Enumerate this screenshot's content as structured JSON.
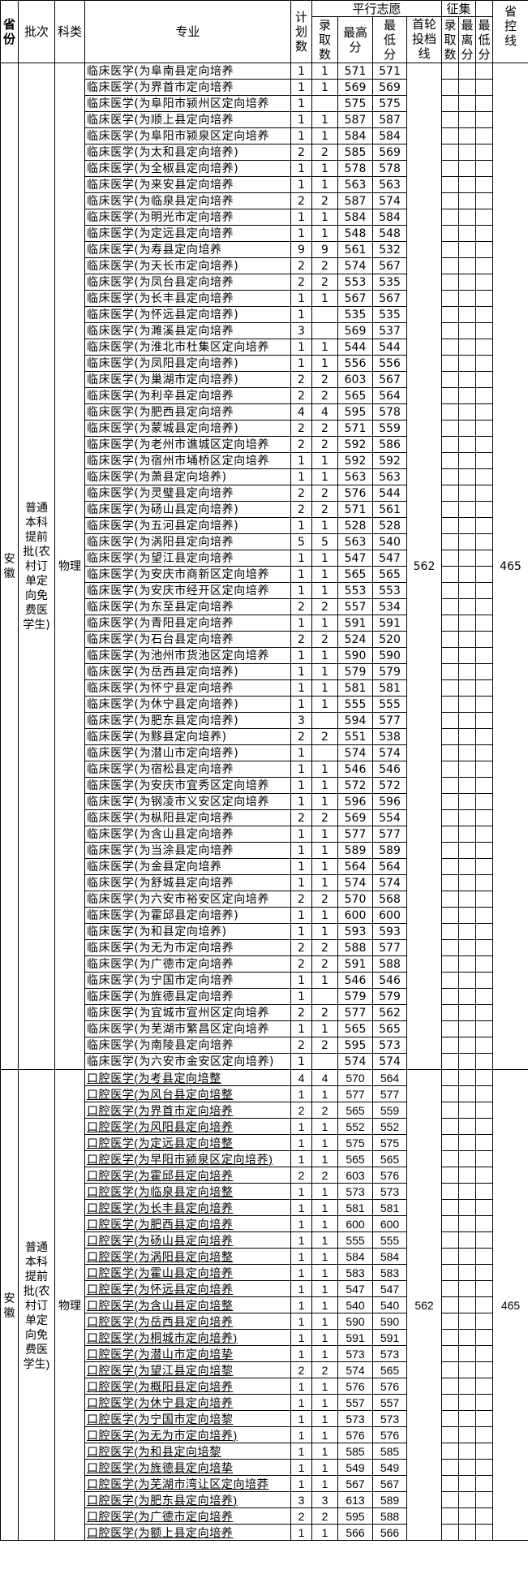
{
  "header": {
    "province": "省份",
    "batch": "批次",
    "subject_type": "科类",
    "major": "专业",
    "plan": "计划数",
    "parallel_group": "平行志愿",
    "admitted": "录取数",
    "max_score": "最高分",
    "min_score": "最低分",
    "first_round_line": "首轮投档线",
    "solicit_group": "征集",
    "solicit_admitted": "录取数",
    "solicit_max": "最离分",
    "solicit_min": "最低分",
    "province_control_line": "省控线"
  },
  "blocks": [
    {
      "province": "安徽",
      "batch": "普通本科提前批(农村订单定向免费医学生)",
      "subject_type": "物理",
      "first_round_line": "562",
      "province_control_line": "465",
      "rows": [
        [
          "临床医学(为阜南县定向培养",
          "1",
          "1",
          "571",
          "571"
        ],
        [
          "临床医学(为界首市定向培养",
          "1",
          "1",
          "569",
          "569"
        ],
        [
          "临床医学(为阜阳市颍州区定向培养",
          "1",
          "",
          "575",
          "575"
        ],
        [
          "临床医学(为顺上县定向培养",
          "1",
          "1",
          "587",
          "587"
        ],
        [
          "临床医学(为阜阳市颍泉区定向培养",
          "1",
          "1",
          "584",
          "584"
        ],
        [
          "临床医学(为太和县定向培养)",
          "2",
          "2",
          "585",
          "569"
        ],
        [
          "临床医学(为全椒县定向培养)",
          "1",
          "1",
          "578",
          "578"
        ],
        [
          "临床医学(为来安县定向培养",
          "1",
          "1",
          "563",
          "563"
        ],
        [
          "临床医学(为临泉县定向培养",
          "2",
          "2",
          "587",
          "574"
        ],
        [
          "临床医学(为明光市定向培养",
          "1",
          "1",
          "584",
          "584"
        ],
        [
          "临床医学(为定远县定向培养",
          "1",
          "1",
          "548",
          "548"
        ],
        [
          "临床医学(为寿县定向培养",
          "9",
          "9",
          "561",
          "532"
        ],
        [
          "临床医学(为天长市定向培养)",
          "2",
          "2",
          "574",
          "567"
        ],
        [
          "临床医学(为凤台县定向培养",
          "2",
          "2",
          "553",
          "535"
        ],
        [
          "临床医学(为长丰县定向培养",
          "1",
          "1",
          "567",
          "567"
        ],
        [
          "临床医学(为怀远县定向培养)",
          "1",
          "",
          "535",
          "535"
        ],
        [
          "临床医学(为濉溪县定向培养",
          "3",
          "",
          "569",
          "537"
        ],
        [
          "临床医学(为淮北市杜集区定向培养",
          "1",
          "1",
          "544",
          "544"
        ],
        [
          "临床医学(为凤阳县定向培养)",
          "1",
          "1",
          "556",
          "556"
        ],
        [
          "临床医学(为巢湖市定向培养)",
          "2",
          "2",
          "603",
          "567"
        ],
        [
          "临床医学(为利辛县定向培养",
          "2",
          "2",
          "565",
          "564"
        ],
        [
          "临床医学(为肥西县定向培养",
          "4",
          "4",
          "595",
          "578"
        ],
        [
          "临床医学(为蒙城县定向培养)",
          "2",
          "2",
          "571",
          "559"
        ],
        [
          "临床医学(为老州市谯城区定向培养",
          "2",
          "2",
          "592",
          "586"
        ],
        [
          "临床医学(为宿州市埇桥区定向培养",
          "1",
          "1",
          "592",
          "592"
        ],
        [
          "临床医学(为萧县定向培养)",
          "1",
          "1",
          "563",
          "563"
        ],
        [
          "临床医学(为灵璧县定向培养",
          "2",
          "2",
          "576",
          "544"
        ],
        [
          "临床医学(为砀山县定向培养)",
          "2",
          "2",
          "571",
          "561"
        ],
        [
          "临床医学(为五河县定向培养)",
          "1",
          "1",
          "528",
          "528"
        ],
        [
          "临床医学(为涡阳县定向培养",
          "5",
          "5",
          "563",
          "540"
        ],
        [
          "临床医学(为望江县定向培养",
          "1",
          "1",
          "547",
          "547"
        ],
        [
          "临床医学(为安庆市商新区定向培养",
          "1",
          "1",
          "565",
          "565"
        ],
        [
          "临床医学(为安庆市经开区定向培养",
          "1",
          "1",
          "553",
          "553"
        ],
        [
          "临床医学(为东至县定向培养",
          "2",
          "2",
          "557",
          "534"
        ],
        [
          "临床医学(为青阳县定向培养",
          "1",
          "1",
          "591",
          "591"
        ],
        [
          "临床医学(为石台县定向培养",
          "2",
          "2",
          "524",
          "520"
        ],
        [
          "临床医学(为池州市货池区定向培养",
          "1",
          "1",
          "590",
          "590"
        ],
        [
          "临床医学(为岳西县定向培养)",
          "1",
          "1",
          "579",
          "579"
        ],
        [
          "临床医学(为怀宁县定向培养",
          "1",
          "1",
          "581",
          "581"
        ],
        [
          "临床医学(为休宁县定向培养)",
          "1",
          "1",
          "555",
          "555"
        ],
        [
          "临床医学(为肥东县定向培养)",
          "3",
          "",
          "594",
          "577"
        ],
        [
          "临床医学(为黟县定向培养)",
          "2",
          "2",
          "551",
          "538"
        ],
        [
          "临床医学(为潜山市定向培养)",
          "1",
          "",
          "574",
          "574"
        ],
        [
          "临床医学(为宿松县定向培养",
          "1",
          "1",
          "546",
          "546"
        ],
        [
          "临床医学(为安庆市宜秀区定向培养",
          "1",
          "1",
          "572",
          "572"
        ],
        [
          "临床医学(为钢凌市义安区定向培养",
          "1",
          "1",
          "596",
          "596"
        ],
        [
          "临床医学(为枞阳县定向培养",
          "2",
          "2",
          "569",
          "554"
        ],
        [
          "临床医学(为含山县定向培养",
          "1",
          "1",
          "577",
          "577"
        ],
        [
          "临床医学(为当涂县定向培养",
          "1",
          "1",
          "589",
          "589"
        ],
        [
          "临床医学(为金县定向培养",
          "1",
          "1",
          "564",
          "564"
        ],
        [
          "临床医学(为舒城县定向培养",
          "1",
          "1",
          "574",
          "574"
        ],
        [
          "临床医学(为六安市裕安区定向培养",
          "2",
          "2",
          "570",
          "568"
        ],
        [
          "临床医学(为霍邱县定向培养)",
          "1",
          "1",
          "600",
          "600"
        ],
        [
          "临床医学(为和县定向培养)",
          "1",
          "1",
          "593",
          "593"
        ],
        [
          "临床医学(为无为市定向培养",
          "2",
          "2",
          "588",
          "577"
        ],
        [
          "临床医学(为广德市定向培养",
          "2",
          "2",
          "591",
          "588"
        ],
        [
          "临床医学(为宁国市定向培养",
          "1",
          "1",
          "546",
          "546"
        ],
        [
          "临床医学(为旌德县定向培养",
          "1",
          "",
          "579",
          "579"
        ],
        [
          "临床医学(为宜城市宣州区定向培养",
          "2",
          "2",
          "577",
          "562"
        ],
        [
          "临床医学(为芜湖市繁昌区定向培养",
          "1",
          "1",
          "565",
          "565"
        ],
        [
          "临床医学(为南陵县定向培养",
          "2",
          "2",
          "595",
          "573"
        ],
        [
          "临床医学(为六安市金安区定向培养)",
          "1",
          "",
          "574",
          "574"
        ]
      ]
    },
    {
      "province": "安徽",
      "batch": "普通本科提前批(农村订单定向免费医学生)",
      "subject_type": "物理",
      "first_round_line": "562",
      "province_control_line": "465",
      "rows": [
        [
          "口腔医学(为考县定向培整",
          "4",
          "4",
          "570",
          "564"
        ],
        [
          "口腔医学(为风台县定向培整",
          "1",
          "1",
          "577",
          "577"
        ],
        [
          "口腔医学(为界首市定向培养",
          "2",
          "2",
          "565",
          "559"
        ],
        [
          "口腔医学(为风阳县定向培养",
          "1",
          "1",
          "552",
          "552"
        ],
        [
          "口腔医学(为定远县定向培整",
          "1",
          "1",
          "575",
          "575"
        ],
        [
          "口腔医学(为早阳市颍泉区定向培荞)",
          "1",
          "1",
          "565",
          "565"
        ],
        [
          "口腔医学(为霍邱县定向培养",
          "2",
          "2",
          "603",
          "576"
        ],
        [
          "口腔医学(为临泉县定向培整",
          "1",
          "1",
          "573",
          "573"
        ],
        [
          "口腔医学(为长丰县定向培养",
          "1",
          "1",
          "581",
          "581"
        ],
        [
          "口腔医学(为肥西县定向培养",
          "1",
          "1",
          "600",
          "600"
        ],
        [
          "口腔医学(为砀山县定向培养",
          "1",
          "1",
          "555",
          "555"
        ],
        [
          "口腔医学(为涡阳县定向培整",
          "1",
          "1",
          "584",
          "584"
        ],
        [
          "口腔医学(为霍山县定向培养",
          "1",
          "1",
          "583",
          "583"
        ],
        [
          "口腔医学(为怀远县定向培养",
          "1",
          "1",
          "547",
          "547"
        ],
        [
          "口腔医学(为含山县定向培整",
          "1",
          "1",
          "540",
          "540"
        ],
        [
          "口腔医学(为岳西县定向培养",
          "1",
          "1",
          "590",
          "590"
        ],
        [
          "口腔医学(为桐城市定向培养)",
          "1",
          "1",
          "591",
          "591"
        ],
        [
          "口腔医学(为潜山市定向培挚",
          "1",
          "1",
          "573",
          "573"
        ],
        [
          "口腔医学(为望江县定向培黎",
          "2",
          "2",
          "574",
          "565"
        ],
        [
          "口腔医学(为概阳县定向培养",
          "1",
          "1",
          "576",
          "576"
        ],
        [
          "口腔医学(为休宁县定向培养",
          "1",
          "1",
          "557",
          "557"
        ],
        [
          "口腔医学(为宁国市定向培黎",
          "1",
          "1",
          "573",
          "573"
        ],
        [
          "口腔医学(为无为市定向培养)",
          "1",
          "1",
          "576",
          "576"
        ],
        [
          "口腔医学(为和县定向培黎",
          "1",
          "1",
          "585",
          "585"
        ],
        [
          "口腔医学(为旌德县定向培挚",
          "1",
          "1",
          "549",
          "549"
        ],
        [
          "口腔医学(为芜湖市湾让区定向培莽",
          "1",
          "1",
          "567",
          "567"
        ],
        [
          "口腔医学(为肥东县定向培养)",
          "3",
          "3",
          "613",
          "589"
        ],
        [
          "口腔医学(为广德市定向培养",
          "2",
          "2",
          "595",
          "588"
        ],
        [
          "口腔医学(为额上县定向培养",
          "1",
          "1",
          "566",
          "566"
        ]
      ]
    }
  ]
}
